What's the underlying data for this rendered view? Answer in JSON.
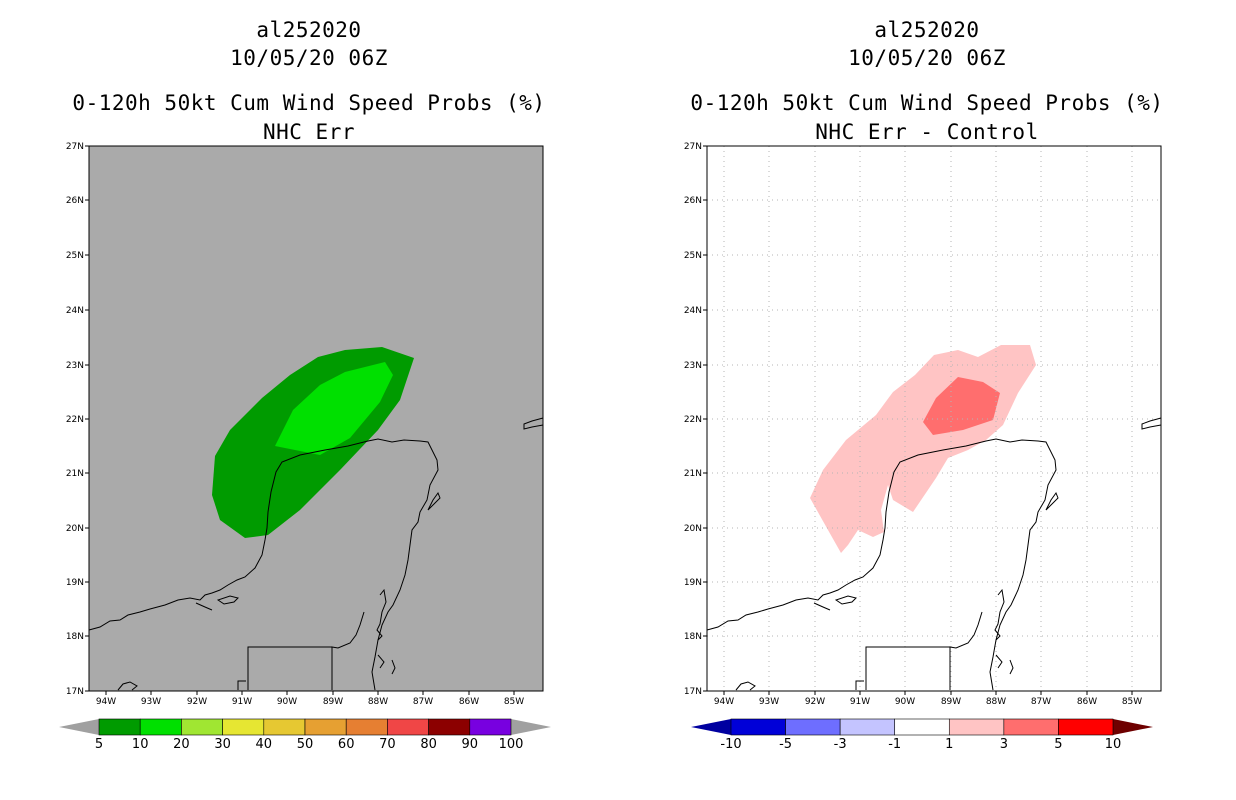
{
  "left_panel": {
    "storm_id": "al252020",
    "datetime": "10/05/20 06Z",
    "product": "0-120h 50kt Cum Wind Speed Probs (%)",
    "subtitle": "NHC Err",
    "background_color": "#aaaaaa",
    "colorbar": {
      "colors": [
        "#009b00",
        "#00e000",
        "#a0e632",
        "#e6e632",
        "#e6c832",
        "#e6a032",
        "#e67f32",
        "#f04646",
        "#8c0000",
        "#7800e0"
      ],
      "end_arrow_color": "#a0a0a0",
      "labels": [
        "5",
        "10",
        "20",
        "30",
        "40",
        "50",
        "60",
        "70",
        "80",
        "90",
        "100"
      ]
    }
  },
  "right_panel": {
    "storm_id": "al252020",
    "datetime": "10/05/20 06Z",
    "product": "0-120h 50kt Cum Wind Speed Probs (%)",
    "subtitle": "NHC Err - Control",
    "background_color": "#ffffff",
    "colorbar": {
      "colors": [
        "#0000d8",
        "#6e6eff",
        "#c4c4ff",
        "#ffffff",
        "#ffc4c4",
        "#ff6e6e",
        "#ff0000"
      ],
      "low_arrow_color": "#0000a0",
      "high_arrow_color": "#6e0000",
      "labels": [
        "-10",
        "-5",
        "-3",
        "-1",
        "1",
        "3",
        "5",
        "10"
      ]
    }
  },
  "axes": {
    "lat_labels": [
      "27N",
      "26N",
      "25N",
      "24N",
      "23N",
      "22N",
      "21N",
      "20N",
      "19N",
      "18N",
      "17N"
    ],
    "lon_labels": [
      "94W",
      "93W",
      "92W",
      "91W",
      "90W",
      "89W",
      "88W",
      "87W",
      "86W",
      "85W"
    ]
  }
}
